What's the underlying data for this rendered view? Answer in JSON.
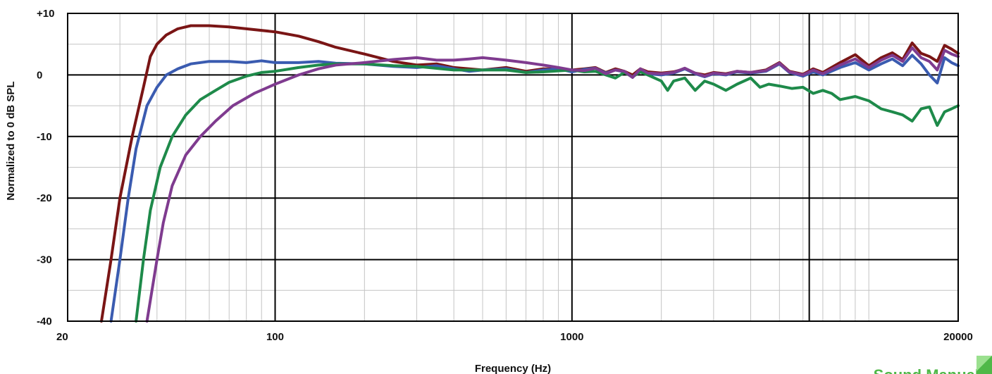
{
  "chart_data": {
    "type": "line",
    "xlabel": "Frequency (Hz)",
    "ylabel": "Normalized to 0 dB SPL",
    "x_scale": "log",
    "xlim": [
      20,
      20000
    ],
    "ylim": [
      -40,
      10
    ],
    "x_tick_labels": [
      {
        "value": 20,
        "label": "20"
      },
      {
        "value": 100,
        "label": "100"
      },
      {
        "value": 1000,
        "label": "1000"
      },
      {
        "value": 20000,
        "label": "20000"
      }
    ],
    "y_tick_labels": [
      {
        "value": 10,
        "label": "+10"
      },
      {
        "value": 0,
        "label": "0"
      },
      {
        "value": -10,
        "label": "-10"
      },
      {
        "value": -20,
        "label": "-20"
      },
      {
        "value": -30,
        "label": "-30"
      },
      {
        "value": -40,
        "label": "-40"
      }
    ],
    "major_x_gridlines": [
      100,
      1000,
      6300
    ],
    "grid": true,
    "legend": "none",
    "series": [
      {
        "color": "#7a1515",
        "points": [
          [
            26,
            -40
          ],
          [
            28,
            -30
          ],
          [
            30,
            -20
          ],
          [
            33,
            -10
          ],
          [
            36,
            -2
          ],
          [
            38,
            3
          ],
          [
            40,
            5
          ],
          [
            43,
            6.5
          ],
          [
            47,
            7.5
          ],
          [
            52,
            8
          ],
          [
            60,
            8
          ],
          [
            70,
            7.8
          ],
          [
            80,
            7.5
          ],
          [
            100,
            7
          ],
          [
            120,
            6.3
          ],
          [
            140,
            5.4
          ],
          [
            160,
            4.5
          ],
          [
            200,
            3.4
          ],
          [
            250,
            2.2
          ],
          [
            300,
            1.6
          ],
          [
            350,
            1.8
          ],
          [
            400,
            1.2
          ],
          [
            500,
            0.8
          ],
          [
            600,
            1.2
          ],
          [
            700,
            0.6
          ],
          [
            800,
            1
          ],
          [
            900,
            1
          ],
          [
            1000,
            0.8
          ],
          [
            1100,
            1
          ],
          [
            1200,
            1.2
          ],
          [
            1300,
            0.4
          ],
          [
            1400,
            1
          ],
          [
            1500,
            0.6
          ],
          [
            1600,
            0
          ],
          [
            1700,
            1
          ],
          [
            1800,
            0.5
          ],
          [
            2000,
            0.3
          ],
          [
            2200,
            0.5
          ],
          [
            2400,
            1
          ],
          [
            2600,
            0.3
          ],
          [
            2800,
            0
          ],
          [
            3000,
            0.4
          ],
          [
            3300,
            0.2
          ],
          [
            3600,
            0.6
          ],
          [
            4000,
            0.4
          ],
          [
            4500,
            0.8
          ],
          [
            5000,
            2
          ],
          [
            5400,
            0.6
          ],
          [
            6000,
            0.1
          ],
          [
            6500,
            1
          ],
          [
            7000,
            0.4
          ],
          [
            8000,
            2
          ],
          [
            9000,
            3.3
          ],
          [
            10000,
            1.5
          ],
          [
            11000,
            2.8
          ],
          [
            12000,
            3.6
          ],
          [
            13000,
            2.5
          ],
          [
            14000,
            5.2
          ],
          [
            15000,
            3.5
          ],
          [
            16000,
            3
          ],
          [
            17000,
            2.2
          ],
          [
            18000,
            4.8
          ],
          [
            19000,
            4.2
          ],
          [
            20000,
            3.5
          ]
        ]
      },
      {
        "color": "#3a5bb0",
        "points": [
          [
            28,
            -40
          ],
          [
            30,
            -30
          ],
          [
            32,
            -20
          ],
          [
            34,
            -12
          ],
          [
            37,
            -5
          ],
          [
            40,
            -2
          ],
          [
            43,
            0
          ],
          [
            47,
            1
          ],
          [
            52,
            1.8
          ],
          [
            60,
            2.2
          ],
          [
            70,
            2.2
          ],
          [
            80,
            2
          ],
          [
            90,
            2.3
          ],
          [
            100,
            2
          ],
          [
            120,
            2
          ],
          [
            140,
            2.2
          ],
          [
            160,
            1.9
          ],
          [
            200,
            1.8
          ],
          [
            250,
            1.4
          ],
          [
            300,
            1.2
          ],
          [
            350,
            1.5
          ],
          [
            400,
            1
          ],
          [
            450,
            0.6
          ],
          [
            500,
            0.8
          ],
          [
            600,
            1
          ],
          [
            700,
            0.4
          ],
          [
            800,
            0.8
          ],
          [
            900,
            1
          ],
          [
            1000,
            0.5
          ],
          [
            1100,
            0.9
          ],
          [
            1200,
            1.1
          ],
          [
            1300,
            0.3
          ],
          [
            1400,
            0.8
          ],
          [
            1500,
            0.5
          ],
          [
            1600,
            -0.4
          ],
          [
            1700,
            0.8
          ],
          [
            1800,
            0.2
          ],
          [
            2000,
            0
          ],
          [
            2200,
            0.3
          ],
          [
            2400,
            1
          ],
          [
            2600,
            0.2
          ],
          [
            2800,
            -0.3
          ],
          [
            3000,
            0.2
          ],
          [
            3300,
            0
          ],
          [
            3600,
            0.5
          ],
          [
            4000,
            0.3
          ],
          [
            4500,
            0.6
          ],
          [
            5000,
            1.8
          ],
          [
            5400,
            0.4
          ],
          [
            6000,
            -0.2
          ],
          [
            6500,
            0.5
          ],
          [
            7000,
            0
          ],
          [
            8000,
            1.2
          ],
          [
            9000,
            2
          ],
          [
            10000,
            0.8
          ],
          [
            11000,
            1.8
          ],
          [
            12000,
            2.6
          ],
          [
            13000,
            1.5
          ],
          [
            14000,
            3.2
          ],
          [
            15000,
            1.8
          ],
          [
            16000,
            0
          ],
          [
            17000,
            -1.3
          ],
          [
            18000,
            2.8
          ],
          [
            19000,
            2
          ],
          [
            20000,
            1.5
          ]
        ]
      },
      {
        "color": "#1e8a4a",
        "points": [
          [
            34,
            -40
          ],
          [
            36,
            -30
          ],
          [
            38,
            -22
          ],
          [
            41,
            -15
          ],
          [
            45,
            -10
          ],
          [
            50,
            -6.5
          ],
          [
            56,
            -4
          ],
          [
            63,
            -2.5
          ],
          [
            70,
            -1.2
          ],
          [
            80,
            -0.2
          ],
          [
            90,
            0.4
          ],
          [
            100,
            0.6
          ],
          [
            120,
            1.2
          ],
          [
            140,
            1.6
          ],
          [
            160,
            1.8
          ],
          [
            200,
            1.8
          ],
          [
            250,
            1.5
          ],
          [
            300,
            1.4
          ],
          [
            400,
            0.8
          ],
          [
            500,
            0.8
          ],
          [
            600,
            0.8
          ],
          [
            700,
            0.4
          ],
          [
            800,
            0.5
          ],
          [
            1000,
            0.8
          ],
          [
            1100,
            0.5
          ],
          [
            1200,
            0.6
          ],
          [
            1300,
            0
          ],
          [
            1400,
            -0.5
          ],
          [
            1500,
            0.4
          ],
          [
            1600,
            -0.3
          ],
          [
            1700,
            0.5
          ],
          [
            1800,
            0
          ],
          [
            2000,
            -1
          ],
          [
            2100,
            -2.5
          ],
          [
            2200,
            -1
          ],
          [
            2400,
            -0.5
          ],
          [
            2600,
            -2.5
          ],
          [
            2800,
            -1
          ],
          [
            3000,
            -1.5
          ],
          [
            3300,
            -2.5
          ],
          [
            3600,
            -1.5
          ],
          [
            4000,
            -0.5
          ],
          [
            4300,
            -2
          ],
          [
            4600,
            -1.5
          ],
          [
            5000,
            -1.8
          ],
          [
            5500,
            -2.2
          ],
          [
            6000,
            -2
          ],
          [
            6500,
            -3
          ],
          [
            7000,
            -2.5
          ],
          [
            7500,
            -3
          ],
          [
            8000,
            -4
          ],
          [
            9000,
            -3.5
          ],
          [
            10000,
            -4.2
          ],
          [
            11000,
            -5.5
          ],
          [
            12000,
            -6
          ],
          [
            13000,
            -6.5
          ],
          [
            14000,
            -7.5
          ],
          [
            15000,
            -5.5
          ],
          [
            16000,
            -5.2
          ],
          [
            17000,
            -8.2
          ],
          [
            18000,
            -6
          ],
          [
            19000,
            -5.5
          ],
          [
            20000,
            -5
          ]
        ]
      },
      {
        "color": "#7f3b8f",
        "points": [
          [
            37,
            -40
          ],
          [
            40,
            -30
          ],
          [
            42,
            -24
          ],
          [
            45,
            -18
          ],
          [
            50,
            -13
          ],
          [
            56,
            -10
          ],
          [
            63,
            -7.5
          ],
          [
            72,
            -5
          ],
          [
            85,
            -3
          ],
          [
            100,
            -1.5
          ],
          [
            120,
            0
          ],
          [
            140,
            1
          ],
          [
            160,
            1.6
          ],
          [
            200,
            2
          ],
          [
            250,
            2.5
          ],
          [
            300,
            2.8
          ],
          [
            350,
            2.4
          ],
          [
            400,
            2.4
          ],
          [
            450,
            2.6
          ],
          [
            500,
            2.8
          ],
          [
            600,
            2.4
          ],
          [
            700,
            2
          ],
          [
            800,
            1.6
          ],
          [
            900,
            1.2
          ],
          [
            1000,
            0.8
          ],
          [
            1100,
            0.7
          ],
          [
            1200,
            1.1
          ],
          [
            1300,
            0.2
          ],
          [
            1400,
            0.8
          ],
          [
            1500,
            0.6
          ],
          [
            1600,
            -0.4
          ],
          [
            1700,
            1
          ],
          [
            1800,
            0.3
          ],
          [
            2000,
            0.2
          ],
          [
            2200,
            0.4
          ],
          [
            2400,
            1.1
          ],
          [
            2600,
            0.3
          ],
          [
            2800,
            -0.2
          ],
          [
            3000,
            0.3
          ],
          [
            3300,
            0.1
          ],
          [
            3600,
            0.6
          ],
          [
            4000,
            0.4
          ],
          [
            4500,
            0.7
          ],
          [
            5000,
            1.9
          ],
          [
            5400,
            0.5
          ],
          [
            6000,
            0
          ],
          [
            6500,
            0.8
          ],
          [
            7000,
            0.2
          ],
          [
            8000,
            1.6
          ],
          [
            9000,
            2.6
          ],
          [
            10000,
            1.2
          ],
          [
            11000,
            2.4
          ],
          [
            12000,
            3.2
          ],
          [
            13000,
            2.2
          ],
          [
            14000,
            4.4
          ],
          [
            15000,
            2.8
          ],
          [
            16000,
            2.2
          ],
          [
            17000,
            0.8
          ],
          [
            18000,
            4
          ],
          [
            19000,
            3.4
          ],
          [
            20000,
            3
          ]
        ]
      }
    ]
  },
  "logo": {
    "text": "Sound Manual",
    "color": "#4fb848"
  }
}
